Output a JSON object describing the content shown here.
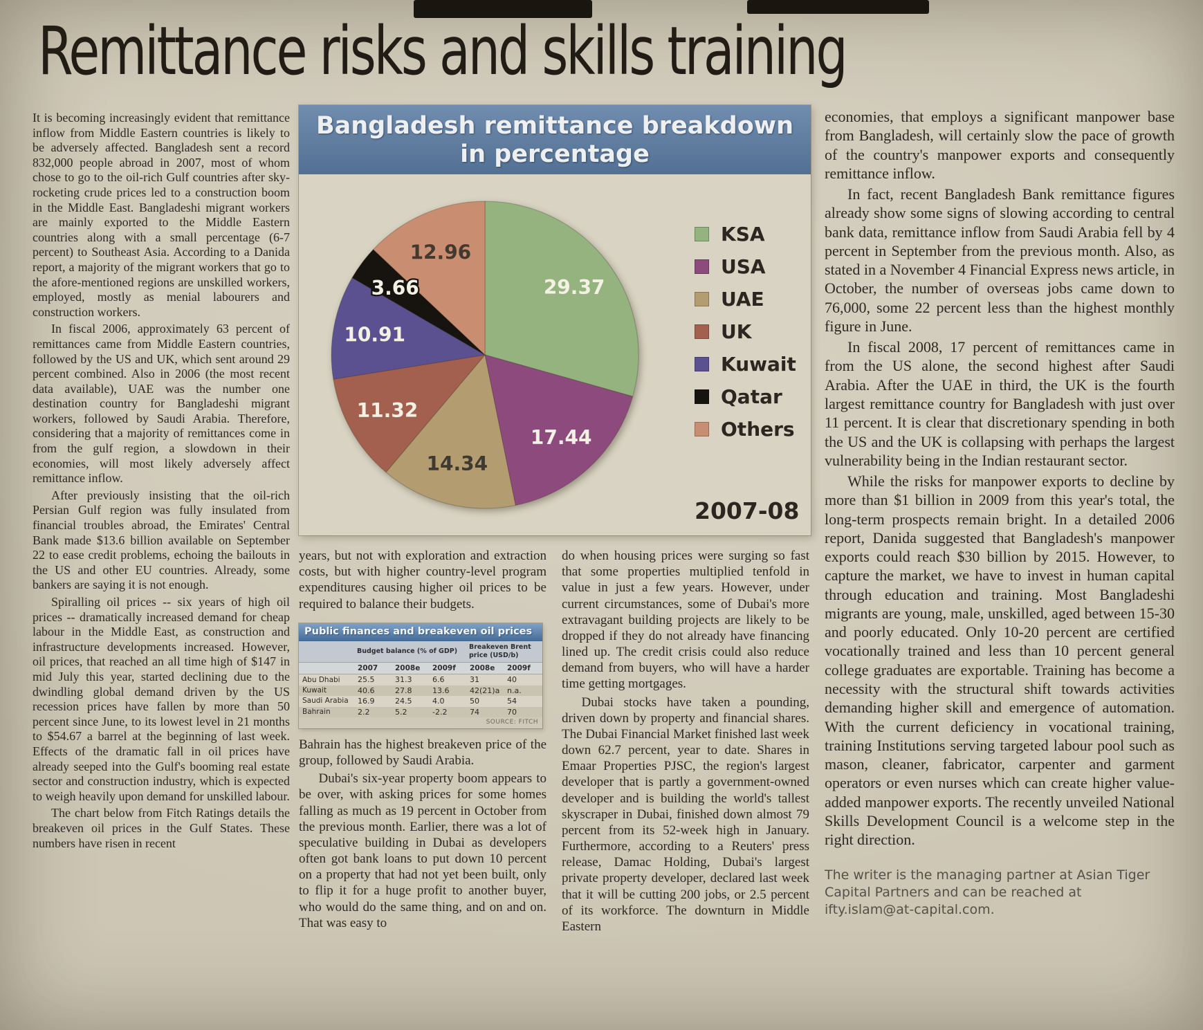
{
  "headline": "Remittance risks and skills training",
  "columns": {
    "col1": [
      "It is becoming increasingly evident that remittance inflow from Middle Eastern countries is likely to be adversely affected. Bangladesh sent a record 832,000 people abroad in 2007, most of whom chose to go to the oil-rich Gulf countries after sky-rocketing crude prices led to a construction boom in the Middle East. Bangladeshi migrant workers are mainly exported to the Middle Eastern countries along with a small percentage (6-7 percent) to Southeast Asia. According to a Danida report, a majority of the migrant workers that go to the afore-mentioned regions are unskilled workers, employed, mostly as menial labourers and construction workers.",
      "In fiscal 2006, approximately 63 percent of remittances came from Middle Eastern countries, followed by the US and UK, which sent around 29 percent combined. Also in 2006 (the most recent data available), UAE was the number one destination country for Bangladeshi migrant workers, followed by Saudi Arabia. Therefore, considering that a majority of remittances come in from the gulf region, a slowdown in their economies, will most likely adversely affect remittance inflow.",
      "After previously insisting that the oil-rich Persian Gulf region was fully insulated from financial troubles abroad, the Emirates' Central Bank made $13.6 billion available on September 22 to ease credit problems, echoing the bailouts in the US and other EU countries. Already, some bankers are saying it is not enough.",
      "Spiralling oil prices -- six years of high oil prices -- dramatically increased demand for cheap labour in the Middle East, as construction and infrastructure developments increased. However, oil prices, that reached an all time high of $147 in mid July this year, started declining due to the dwindling global demand driven by the US recession prices have fallen by more than 50 percent since June, to its lowest level in 21 months to $54.67 a barrel at the beginning of last week. Effects of the dramatic fall in oil prices have already seeped into the Gulf's booming real estate sector and construction industry, which is expected to weigh heavily upon demand for unskilled labour.",
      "The chart below from Fitch Ratings details the breakeven oil prices in the Gulf States. These numbers have risen in recent"
    ],
    "col2_top": [
      "years, but not with exploration and extraction costs, but with higher country-level program expenditures causing higher oil prices to be required to balance their budgets."
    ],
    "col2_bottom": [
      "Bahrain has the highest breakeven price of the group, followed by Saudi Arabia.",
      "Dubai's six-year property boom appears to be over, with asking prices for some homes falling as much as 19 percent in October from the previous month. Earlier, there was a lot of speculative building in Dubai as developers often got bank loans to put down 10 percent on a property that had not yet been built, only to flip it for a huge profit to another buyer, who would do the same thing, and on and on. That was easy to"
    ],
    "col3": [
      "do when housing prices were surging so fast that some properties multiplied tenfold in value in just a few years. However, under current circumstances, some of Dubai's more extravagant building projects are likely to be dropped if they do not already have financing lined up. The credit crisis could also reduce demand from buyers, who will have a harder time getting mortgages.",
      "Dubai stocks have taken a pounding, driven down by property and financial shares. The Dubai Financial Market finished last week down 62.7 percent, year to date. Shares in Emaar Properties PJSC, the region's largest developer that is partly a government-owned developer and is building the world's tallest skyscraper in Dubai, finished down almost 79 percent from its 52-week high in January. Furthermore, according to a Reuters' press release, Damac Holding, Dubai's largest private property developer, declared last week that it will be cutting 200 jobs, or 2.5 percent of its workforce. The downturn in Middle Eastern"
    ],
    "col4": [
      "economies, that employs a significant manpower base from Bangladesh, will certainly slow the pace of growth of the country's manpower exports and consequently remittance inflow.",
      "In fact, recent Bangladesh Bank remittance figures already show some signs of slowing according to central bank data, remittance inflow from Saudi Arabia fell by 4 percent in September from the previous month. Also, as stated in a November 4 Financial Express news article, in October, the number of overseas jobs came down to 76,000, some 22 percent less than the highest monthly figure in June.",
      "In fiscal 2008, 17 percent of remittances came in from the US alone, the second highest after Saudi Arabia. After the UAE in third, the UK is the fourth largest remittance country for Bangladesh with just over 11 percent. It is clear that discretionary spending in both the US and the UK is collapsing with perhaps the largest vulnerability being in the Indian restaurant sector.",
      "While the risks for manpower exports to decline by more than $1 billion in 2009 from this year's total, the long-term prospects remain bright. In a detailed 2006 report, Danida suggested that Bangladesh's manpower exports could reach $30 billion by 2015. However, to capture the market, we have to invest in human capital through education and training. Most Bangladeshi migrants are young, male, unskilled, aged between 15-30 and poorly educated. Only 10-20 percent are certified vocationally trained and less than 10 percent general college graduates are exportable. Training has become a necessity with the structural shift towards activities demanding higher skill and emergence of automation. With the current deficiency in vocational training, training Institutions serving targeted labour pool such as mason, cleaner, fabricator, carpenter and garment operators or even nurses which can create higher value-added manpower exports. The recently unveiled National Skills Development Council is a welcome step in the right direction."
    ]
  },
  "byline": "The writer is the managing partner at Asian Tiger Capital Partners and can be reached at ifty.islam@at-capital.com.",
  "chart_data": [
    {
      "type": "pie",
      "title": "Bangladesh remittance breakdown in percentage",
      "title_lines": [
        "Bangladesh remittance breakdown",
        "in percentage"
      ],
      "period": "2007-08",
      "legend_position": "right",
      "categories": [
        "KSA",
        "USA",
        "UAE",
        "UK",
        "Kuwait",
        "Qatar",
        "Others"
      ],
      "values": [
        29.37,
        17.44,
        14.34,
        11.32,
        10.91,
        3.66,
        12.96
      ],
      "colors": [
        "#94b37e",
        "#8d4b7d",
        "#b49c71",
        "#a3604f",
        "#5c5190",
        "#17140f",
        "#c98e71"
      ],
      "label_colors": [
        "#f3f0e4",
        "#f3f0e4",
        "#3f3a2f",
        "#f3f0e4",
        "#f3f0e4",
        "#f3f0e4",
        "#44392e"
      ],
      "header_bg": "#5c7da4"
    },
    {
      "type": "table",
      "title": "Public finances and breakeven oil prices",
      "header_bg": "#4f7db1",
      "col_groups": [
        {
          "label": "Budget balance (% of GDP)",
          "span": 3
        },
        {
          "label": "Breakeven Brent price (USD/b)",
          "span": 2
        }
      ],
      "columns": [
        "",
        "2007",
        "2008e",
        "2009f",
        "2008e",
        "2009f"
      ],
      "rows": [
        [
          "Abu Dhabi",
          "25.5",
          "31.3",
          "6.6",
          "31",
          "40"
        ],
        [
          "Kuwait",
          "40.6",
          "27.8",
          "13.6",
          "42(21)a",
          "n.a."
        ],
        [
          "Saudi Arabia",
          "16.9",
          "24.5",
          "4.0",
          "50",
          "54"
        ],
        [
          "Bahrain",
          "2.2",
          "5.2",
          "-2.2",
          "74",
          "70"
        ]
      ],
      "source": "SOURCE: FITCH"
    }
  ]
}
